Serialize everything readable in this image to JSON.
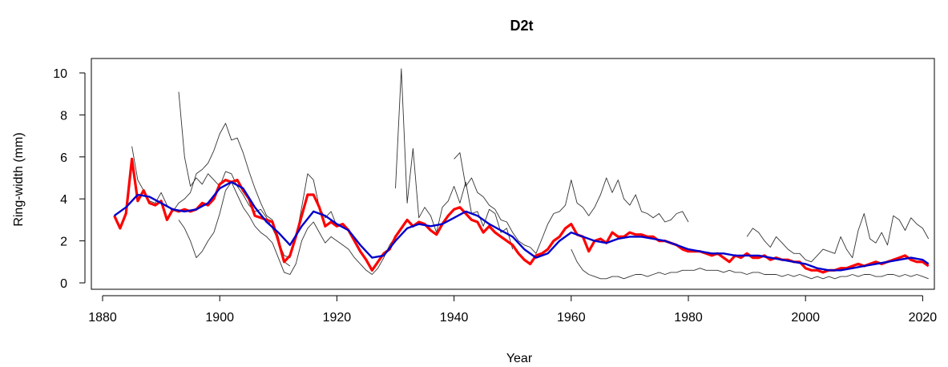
{
  "chart_data": {
    "type": "line",
    "title": "D2t",
    "xlabel": "Year",
    "ylabel": "Ring-width (mm)",
    "xlim": [
      1880,
      2022
    ],
    "ylim": [
      0,
      10.5
    ],
    "x_ticks": [
      1880,
      1900,
      1920,
      1940,
      1960,
      1980,
      2000,
      2020
    ],
    "y_ticks": [
      0,
      2,
      4,
      6,
      8,
      10
    ],
    "grid": false,
    "legend": "none",
    "colors": {
      "individual_series": "#333333",
      "mean_chronology": "#ff0000",
      "smoothed_spline": "#0000cc"
    },
    "series": [
      {
        "role": "mean-chronology",
        "color": "#ff0000",
        "x": [
          1882,
          1883,
          1884,
          1885,
          1886,
          1887,
          1888,
          1889,
          1890,
          1891,
          1892,
          1893,
          1894,
          1895,
          1896,
          1897,
          1898,
          1899,
          1900,
          1901,
          1902,
          1903,
          1904,
          1905,
          1906,
          1907,
          1908,
          1909,
          1910,
          1911,
          1912,
          1913,
          1914,
          1915,
          1916,
          1917,
          1918,
          1919,
          1920,
          1921,
          1922,
          1923,
          1924,
          1925,
          1926,
          1927,
          1928,
          1929,
          1930,
          1931,
          1932,
          1933,
          1934,
          1935,
          1936,
          1937,
          1938,
          1939,
          1940,
          1941,
          1942,
          1943,
          1944,
          1945,
          1946,
          1947,
          1948,
          1949,
          1950,
          1951,
          1952,
          1953,
          1954,
          1955,
          1956,
          1957,
          1958,
          1959,
          1960,
          1961,
          1962,
          1963,
          1964,
          1965,
          1966,
          1967,
          1968,
          1969,
          1970,
          1971,
          1972,
          1973,
          1974,
          1975,
          1976,
          1977,
          1978,
          1979,
          1980,
          1981,
          1982,
          1983,
          1984,
          1985,
          1986,
          1987,
          1988,
          1989,
          1990,
          1991,
          1992,
          1993,
          1994,
          1995,
          1996,
          1997,
          1998,
          1999,
          2000,
          2001,
          2002,
          2003,
          2004,
          2005,
          2006,
          2007,
          2008,
          2009,
          2010,
          2011,
          2012,
          2013,
          2014,
          2015,
          2016,
          2017,
          2018,
          2019,
          2020,
          2021
        ],
        "y": [
          3.2,
          2.6,
          3.3,
          5.9,
          3.9,
          4.4,
          3.8,
          3.7,
          3.9,
          3.0,
          3.5,
          3.4,
          3.5,
          3.4,
          3.5,
          3.8,
          3.7,
          4.0,
          4.7,
          4.9,
          4.8,
          4.9,
          4.4,
          4.0,
          3.2,
          3.1,
          3.0,
          2.9,
          2.0,
          1.0,
          1.3,
          2.2,
          3.2,
          4.2,
          4.2,
          3.6,
          2.7,
          2.9,
          2.7,
          2.8,
          2.5,
          2.0,
          1.5,
          1.1,
          0.6,
          1.0,
          1.4,
          1.6,
          2.2,
          2.6,
          3.0,
          2.7,
          2.9,
          2.8,
          2.5,
          2.3,
          2.8,
          3.2,
          3.5,
          3.6,
          3.3,
          3.0,
          2.9,
          2.4,
          2.7,
          2.4,
          2.2,
          2.0,
          1.8,
          1.4,
          1.1,
          0.9,
          1.3,
          1.4,
          1.6,
          2.0,
          2.2,
          2.6,
          2.8,
          2.3,
          2.2,
          1.5,
          2.0,
          2.1,
          1.9,
          2.4,
          2.2,
          2.2,
          2.4,
          2.3,
          2.3,
          2.2,
          2.2,
          2.0,
          2.0,
          1.9,
          1.8,
          1.6,
          1.5,
          1.5,
          1.5,
          1.4,
          1.3,
          1.4,
          1.2,
          1.0,
          1.3,
          1.2,
          1.4,
          1.2,
          1.2,
          1.3,
          1.1,
          1.2,
          1.1,
          1.1,
          1.0,
          1.0,
          0.7,
          0.6,
          0.6,
          0.5,
          0.6,
          0.6,
          0.7,
          0.7,
          0.8,
          0.9,
          0.8,
          0.9,
          1.0,
          0.9,
          1.0,
          1.1,
          1.2,
          1.3,
          1.1,
          1.0,
          1.0,
          0.8
        ]
      },
      {
        "role": "smoothed-spline",
        "color": "#0000cc",
        "x": [
          1882,
          1884,
          1886,
          1888,
          1890,
          1892,
          1894,
          1896,
          1898,
          1900,
          1902,
          1904,
          1906,
          1908,
          1910,
          1912,
          1914,
          1916,
          1918,
          1920,
          1922,
          1924,
          1926,
          1928,
          1930,
          1932,
          1934,
          1936,
          1938,
          1940,
          1942,
          1944,
          1946,
          1948,
          1950,
          1952,
          1954,
          1956,
          1958,
          1960,
          1962,
          1964,
          1966,
          1968,
          1970,
          1972,
          1974,
          1976,
          1978,
          1980,
          1982,
          1984,
          1986,
          1988,
          1990,
          1992,
          1994,
          1996,
          1998,
          2000,
          2002,
          2004,
          2006,
          2008,
          2010,
          2012,
          2014,
          2016,
          2018,
          2020,
          2021
        ],
        "y": [
          3.2,
          3.6,
          4.2,
          4.1,
          3.8,
          3.5,
          3.4,
          3.5,
          3.8,
          4.5,
          4.8,
          4.5,
          3.6,
          2.9,
          2.4,
          1.8,
          2.7,
          3.4,
          3.2,
          2.8,
          2.5,
          1.8,
          1.2,
          1.3,
          2.0,
          2.6,
          2.8,
          2.7,
          2.8,
          3.1,
          3.4,
          3.2,
          2.8,
          2.5,
          2.2,
          1.6,
          1.2,
          1.4,
          2.0,
          2.4,
          2.2,
          2.0,
          1.9,
          2.1,
          2.2,
          2.2,
          2.1,
          2.0,
          1.8,
          1.6,
          1.5,
          1.4,
          1.4,
          1.3,
          1.3,
          1.3,
          1.2,
          1.1,
          1.0,
          0.9,
          0.7,
          0.6,
          0.6,
          0.7,
          0.8,
          0.9,
          1.0,
          1.1,
          1.2,
          1.1,
          0.9
        ]
      }
    ],
    "sample_series": [
      {
        "x": [
          1893,
          1894,
          1895,
          1896,
          1897,
          1898,
          1899,
          1900,
          1901,
          1902,
          1903,
          1904,
          1905,
          1906,
          1907,
          1908,
          1909,
          1910,
          1911,
          1912,
          1913,
          1914,
          1915,
          1916,
          1917,
          1918,
          1919,
          1920
        ],
        "y": [
          9.1,
          6.0,
          4.6,
          5.0,
          4.7,
          5.2,
          4.9,
          4.6,
          5.3,
          5.2,
          4.6,
          4.2,
          3.7,
          3.4,
          3.5,
          3.1,
          2.6,
          2.0,
          1.3,
          1.2,
          2.1,
          3.6,
          5.2,
          4.9,
          3.6,
          3.1,
          3.4,
          2.7
        ]
      },
      {
        "x": [
          1930,
          1931,
          1932,
          1933,
          1934,
          1935,
          1936,
          1937,
          1938,
          1939,
          1940,
          1941,
          1942,
          1943,
          1944,
          1945,
          1946,
          1947,
          1948,
          1949,
          1950
        ],
        "y": [
          4.5,
          10.2,
          3.8,
          6.4,
          3.1,
          3.6,
          3.2,
          2.4,
          3.6,
          3.9,
          4.6,
          3.8,
          4.8,
          3.3,
          3.4,
          2.7,
          3.5,
          3.3,
          2.4,
          2.6,
          1.6
        ]
      },
      {
        "x": [
          1885,
          1886,
          1887,
          1888,
          1889,
          1890,
          1891,
          1892,
          1893,
          1894,
          1895,
          1896,
          1897,
          1898,
          1899,
          1900,
          1901,
          1902,
          1903,
          1904,
          1905,
          1906,
          1907,
          1908,
          1909,
          1910,
          1911,
          1912
        ],
        "y": [
          6.5,
          4.9,
          4.4,
          3.9,
          3.8,
          4.3,
          3.7,
          3.4,
          3.8,
          4.0,
          4.3,
          5.2,
          5.4,
          5.7,
          6.3,
          7.1,
          7.6,
          6.8,
          6.9,
          6.2,
          5.3,
          4.5,
          3.8,
          3.2,
          3.0,
          2.2,
          1.0,
          0.8
        ]
      },
      {
        "x": [
          1893,
          1894,
          1895,
          1896,
          1897,
          1898,
          1899,
          1900,
          1901,
          1902,
          1903,
          1904,
          1905,
          1906,
          1907,
          1908,
          1909,
          1910,
          1911,
          1912,
          1913,
          1914,
          1915,
          1916,
          1917,
          1918,
          1919,
          1920,
          1921,
          1922,
          1923,
          1924,
          1925,
          1926,
          1927,
          1928,
          1929,
          1930
        ],
        "y": [
          3.0,
          2.6,
          2.0,
          1.2,
          1.5,
          2.0,
          2.4,
          3.3,
          4.4,
          4.8,
          4.2,
          3.6,
          3.2,
          2.7,
          2.4,
          2.2,
          1.9,
          1.2,
          0.5,
          0.4,
          0.9,
          2.0,
          2.6,
          2.9,
          2.4,
          1.9,
          2.2,
          2.0,
          1.8,
          1.6,
          1.2,
          0.9,
          0.6,
          0.4,
          0.7,
          1.2,
          1.8,
          2.2
        ]
      },
      {
        "x": [
          1940,
          1941,
          1942,
          1943,
          1944,
          1945,
          1946,
          1947,
          1948,
          1949,
          1950,
          1951,
          1952,
          1953,
          1954,
          1955,
          1956,
          1957,
          1958,
          1959,
          1960,
          1961,
          1962,
          1963,
          1964,
          1965,
          1966,
          1967,
          1968,
          1969,
          1970,
          1971,
          1972,
          1973,
          1974,
          1975,
          1976,
          1977,
          1978,
          1979,
          1980
        ],
        "y": [
          5.9,
          6.2,
          4.6,
          5.0,
          4.3,
          4.1,
          3.7,
          3.5,
          3.0,
          2.9,
          2.4,
          2.0,
          1.8,
          1.7,
          1.4,
          2.1,
          2.8,
          3.3,
          3.4,
          3.7,
          4.9,
          3.8,
          3.6,
          3.2,
          3.6,
          4.2,
          5.0,
          4.3,
          4.9,
          4.0,
          3.7,
          4.2,
          3.4,
          3.3,
          3.1,
          3.3,
          2.9,
          3.0,
          3.3,
          3.4,
          2.9
        ]
      },
      {
        "x": [
          1960,
          1961,
          1962,
          1963,
          1964,
          1965,
          1966,
          1967,
          1968,
          1969,
          1970,
          1971,
          1972,
          1973,
          1974,
          1975,
          1976,
          1977,
          1978,
          1979,
          1980,
          1981,
          1982,
          1983,
          1984,
          1985,
          1986,
          1987,
          1988,
          1989,
          1990,
          1991,
          1992,
          1993,
          1994,
          1995,
          1996,
          1997,
          1998,
          1999,
          2000,
          2001,
          2002,
          2003,
          2004,
          2005,
          2006,
          2007,
          2008,
          2009,
          2010,
          2011,
          2012,
          2013,
          2014,
          2015,
          2016,
          2017,
          2018,
          2019,
          2020,
          2021
        ],
        "y": [
          1.6,
          1.0,
          0.6,
          0.4,
          0.3,
          0.2,
          0.2,
          0.3,
          0.3,
          0.2,
          0.3,
          0.4,
          0.4,
          0.3,
          0.4,
          0.5,
          0.4,
          0.5,
          0.5,
          0.6,
          0.6,
          0.6,
          0.7,
          0.6,
          0.6,
          0.6,
          0.5,
          0.6,
          0.5,
          0.5,
          0.4,
          0.5,
          0.5,
          0.4,
          0.4,
          0.4,
          0.3,
          0.4,
          0.3,
          0.4,
          0.3,
          0.2,
          0.3,
          0.2,
          0.3,
          0.2,
          0.3,
          0.3,
          0.4,
          0.3,
          0.4,
          0.4,
          0.3,
          0.3,
          0.4,
          0.4,
          0.3,
          0.4,
          0.3,
          0.4,
          0.3,
          0.2
        ]
      },
      {
        "x": [
          1990,
          1991,
          1992,
          1993,
          1994,
          1995,
          1996,
          1997,
          1998,
          1999,
          2000,
          2001,
          2002,
          2003,
          2004,
          2005,
          2006,
          2007,
          2008,
          2009,
          2010,
          2011,
          2012,
          2013,
          2014,
          2015,
          2016,
          2017,
          2018,
          2019,
          2020,
          2021
        ],
        "y": [
          2.2,
          2.6,
          2.4,
          2.0,
          1.7,
          2.2,
          1.9,
          1.6,
          1.4,
          1.4,
          1.1,
          1.0,
          1.3,
          1.6,
          1.5,
          1.4,
          2.2,
          1.6,
          1.2,
          2.5,
          3.3,
          2.1,
          1.9,
          2.4,
          1.8,
          3.2,
          3.0,
          2.5,
          3.1,
          2.8,
          2.6,
          2.1
        ]
      }
    ]
  }
}
